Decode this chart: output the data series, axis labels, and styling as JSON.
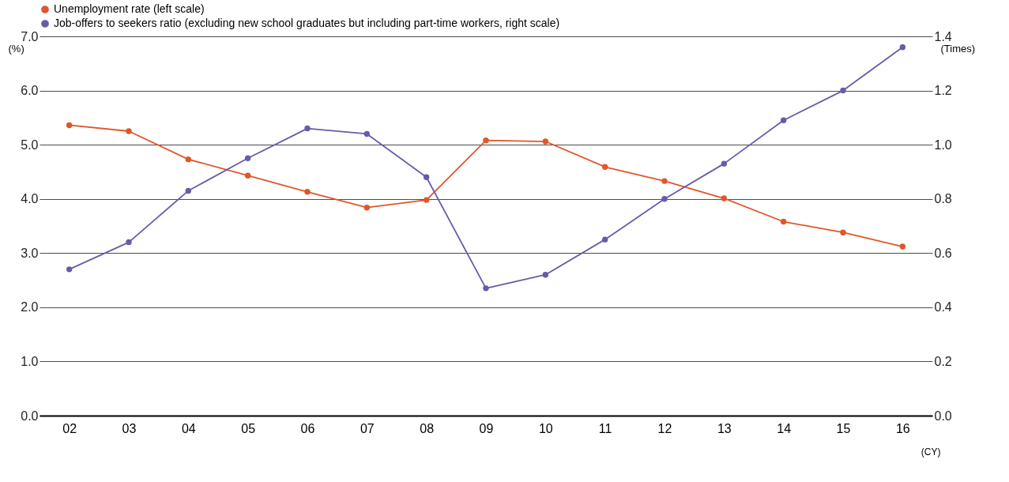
{
  "chart_data": {
    "type": "line",
    "categories": [
      "02",
      "03",
      "04",
      "05",
      "06",
      "07",
      "08",
      "09",
      "10",
      "11",
      "12",
      "13",
      "14",
      "15",
      "16"
    ],
    "series": [
      {
        "name": "Unemployment rate (left scale)",
        "color": "#e0562a",
        "values": [
          5.36,
          5.25,
          4.73,
          4.43,
          4.13,
          3.84,
          3.98,
          5.08,
          5.06,
          4.59,
          4.33,
          4.01,
          3.58,
          3.38,
          3.12
        ]
      },
      {
        "name": "Job-offers to seekers ratio (excluding new school graduates but including part-time workers, right scale)",
        "color": "#6a5aa8",
        "axis": "y2",
        "values": [
          0.54,
          0.64,
          0.83,
          0.95,
          1.06,
          1.04,
          0.88,
          0.47,
          0.52,
          0.65,
          0.8,
          0.93,
          1.09,
          1.2,
          1.36
        ]
      }
    ],
    "ylabel": "(%)",
    "y2label": "(Times)",
    "xlabel": "(CY)",
    "ylim": [
      0,
      7
    ],
    "yticks": [
      {
        "value": 0,
        "label": "0.0"
      },
      {
        "value": 1,
        "label": "1.0"
      },
      {
        "value": 2,
        "label": "2.0"
      },
      {
        "value": 3,
        "label": "3.0"
      },
      {
        "value": 4,
        "label": "4.0"
      },
      {
        "value": 5,
        "label": "5.0"
      },
      {
        "value": 6,
        "label": "6.0"
      },
      {
        "value": 7,
        "label": "7.0"
      }
    ],
    "y2lim": [
      0,
      1.4
    ],
    "y2ticks": [
      {
        "value": 0,
        "label": "0.0"
      },
      {
        "value": 0.2,
        "label": "0.2"
      },
      {
        "value": 0.4,
        "label": "0.4"
      },
      {
        "value": 0.6,
        "label": "0.6"
      },
      {
        "value": 0.8,
        "label": "0.8"
      },
      {
        "value": 1.0,
        "label": "1.0"
      },
      {
        "value": 1.2,
        "label": "1.2"
      },
      {
        "value": 1.4,
        "label": "1.4"
      }
    ],
    "grid": "y",
    "legend": "top",
    "marker": "circle",
    "line_style": "solid"
  }
}
